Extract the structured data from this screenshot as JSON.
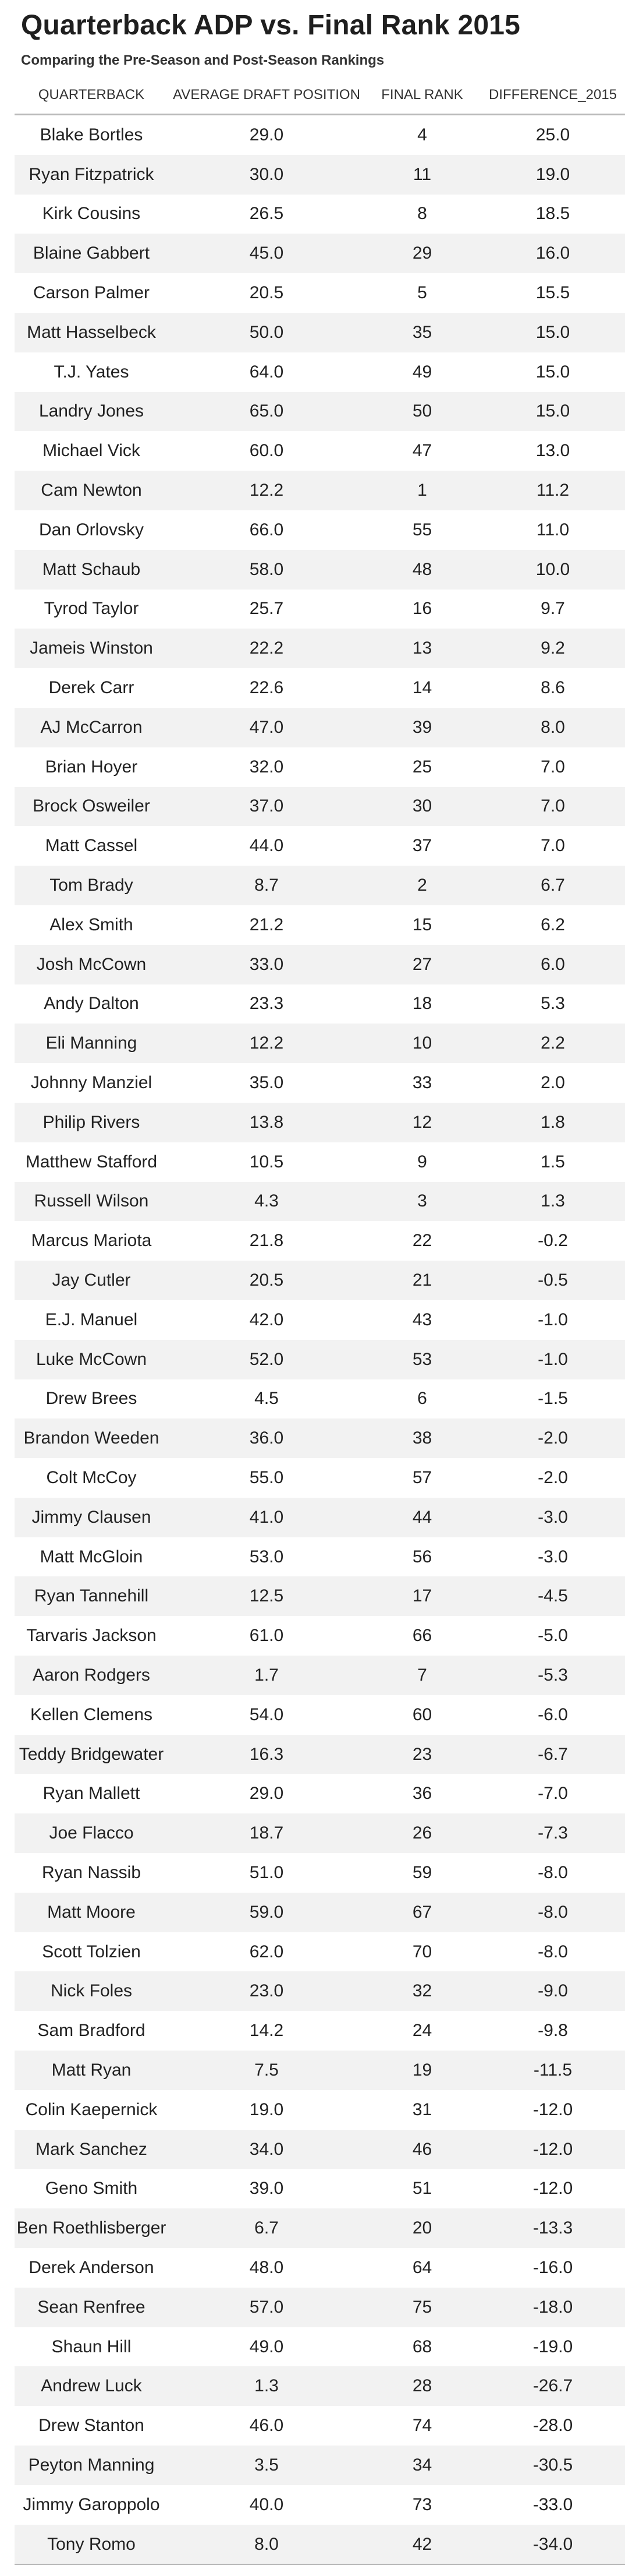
{
  "title": "Quarterback ADP vs. Final Rank 2015",
  "subtitle": "Comparing the Pre-Season and Post-Season Rankings",
  "table": {
    "headers": [
      "QUARTERBACK",
      "AVERAGE DRAFT POSITION",
      "FINAL RANK",
      "DIFFERENCE_2015"
    ],
    "stripe_color": "#f2f2f2",
    "rule_color": "#b9b9b9"
  },
  "chart_data": {
    "type": "table",
    "title": "Quarterback ADP vs. Final Rank 2015",
    "subtitle": "Comparing the Pre-Season and Post-Season Rankings",
    "columns": [
      "QUARTERBACK",
      "AVERAGE DRAFT POSITION",
      "FINAL RANK",
      "DIFFERENCE_2015"
    ],
    "rows": [
      [
        "Blake Bortles",
        "29.0",
        "4",
        "25.0"
      ],
      [
        "Ryan Fitzpatrick",
        "30.0",
        "11",
        "19.0"
      ],
      [
        "Kirk Cousins",
        "26.5",
        "8",
        "18.5"
      ],
      [
        "Blaine Gabbert",
        "45.0",
        "29",
        "16.0"
      ],
      [
        "Carson Palmer",
        "20.5",
        "5",
        "15.5"
      ],
      [
        "Matt Hasselbeck",
        "50.0",
        "35",
        "15.0"
      ],
      [
        "T.J. Yates",
        "64.0",
        "49",
        "15.0"
      ],
      [
        "Landry Jones",
        "65.0",
        "50",
        "15.0"
      ],
      [
        "Michael Vick",
        "60.0",
        "47",
        "13.0"
      ],
      [
        "Cam Newton",
        "12.2",
        "1",
        "11.2"
      ],
      [
        "Dan Orlovsky",
        "66.0",
        "55",
        "11.0"
      ],
      [
        "Matt Schaub",
        "58.0",
        "48",
        "10.0"
      ],
      [
        "Tyrod Taylor",
        "25.7",
        "16",
        "9.7"
      ],
      [
        "Jameis Winston",
        "22.2",
        "13",
        "9.2"
      ],
      [
        "Derek Carr",
        "22.6",
        "14",
        "8.6"
      ],
      [
        "AJ McCarron",
        "47.0",
        "39",
        "8.0"
      ],
      [
        "Brian Hoyer",
        "32.0",
        "25",
        "7.0"
      ],
      [
        "Brock Osweiler",
        "37.0",
        "30",
        "7.0"
      ],
      [
        "Matt Cassel",
        "44.0",
        "37",
        "7.0"
      ],
      [
        "Tom Brady",
        "8.7",
        "2",
        "6.7"
      ],
      [
        "Alex Smith",
        "21.2",
        "15",
        "6.2"
      ],
      [
        "Josh McCown",
        "33.0",
        "27",
        "6.0"
      ],
      [
        "Andy Dalton",
        "23.3",
        "18",
        "5.3"
      ],
      [
        "Eli Manning",
        "12.2",
        "10",
        "2.2"
      ],
      [
        "Johnny Manziel",
        "35.0",
        "33",
        "2.0"
      ],
      [
        "Philip Rivers",
        "13.8",
        "12",
        "1.8"
      ],
      [
        "Matthew Stafford",
        "10.5",
        "9",
        "1.5"
      ],
      [
        "Russell Wilson",
        "4.3",
        "3",
        "1.3"
      ],
      [
        "Marcus Mariota",
        "21.8",
        "22",
        "-0.2"
      ],
      [
        "Jay Cutler",
        "20.5",
        "21",
        "-0.5"
      ],
      [
        "E.J. Manuel",
        "42.0",
        "43",
        "-1.0"
      ],
      [
        "Luke McCown",
        "52.0",
        "53",
        "-1.0"
      ],
      [
        "Drew Brees",
        "4.5",
        "6",
        "-1.5"
      ],
      [
        "Brandon Weeden",
        "36.0",
        "38",
        "-2.0"
      ],
      [
        "Colt McCoy",
        "55.0",
        "57",
        "-2.0"
      ],
      [
        "Jimmy Clausen",
        "41.0",
        "44",
        "-3.0"
      ],
      [
        "Matt McGloin",
        "53.0",
        "56",
        "-3.0"
      ],
      [
        "Ryan Tannehill",
        "12.5",
        "17",
        "-4.5"
      ],
      [
        "Tarvaris Jackson",
        "61.0",
        "66",
        "-5.0"
      ],
      [
        "Aaron Rodgers",
        "1.7",
        "7",
        "-5.3"
      ],
      [
        "Kellen Clemens",
        "54.0",
        "60",
        "-6.0"
      ],
      [
        "Teddy Bridgewater",
        "16.3",
        "23",
        "-6.7"
      ],
      [
        "Ryan Mallett",
        "29.0",
        "36",
        "-7.0"
      ],
      [
        "Joe Flacco",
        "18.7",
        "26",
        "-7.3"
      ],
      [
        "Ryan Nassib",
        "51.0",
        "59",
        "-8.0"
      ],
      [
        "Matt Moore",
        "59.0",
        "67",
        "-8.0"
      ],
      [
        "Scott Tolzien",
        "62.0",
        "70",
        "-8.0"
      ],
      [
        "Nick Foles",
        "23.0",
        "32",
        "-9.0"
      ],
      [
        "Sam Bradford",
        "14.2",
        "24",
        "-9.8"
      ],
      [
        "Matt Ryan",
        "7.5",
        "19",
        "-11.5"
      ],
      [
        "Colin Kaepernick",
        "19.0",
        "31",
        "-12.0"
      ],
      [
        "Mark Sanchez",
        "34.0",
        "46",
        "-12.0"
      ],
      [
        "Geno Smith",
        "39.0",
        "51",
        "-12.0"
      ],
      [
        "Ben Roethlisberger",
        "6.7",
        "20",
        "-13.3"
      ],
      [
        "Derek Anderson",
        "48.0",
        "64",
        "-16.0"
      ],
      [
        "Sean Renfree",
        "57.0",
        "75",
        "-18.0"
      ],
      [
        "Shaun Hill",
        "49.0",
        "68",
        "-19.0"
      ],
      [
        "Andrew Luck",
        "1.3",
        "28",
        "-26.7"
      ],
      [
        "Drew Stanton",
        "46.0",
        "74",
        "-28.0"
      ],
      [
        "Peyton Manning",
        "3.5",
        "34",
        "-30.5"
      ],
      [
        "Jimmy Garoppolo",
        "40.0",
        "73",
        "-33.0"
      ],
      [
        "Tony Romo",
        "8.0",
        "42",
        "-34.0"
      ]
    ]
  }
}
